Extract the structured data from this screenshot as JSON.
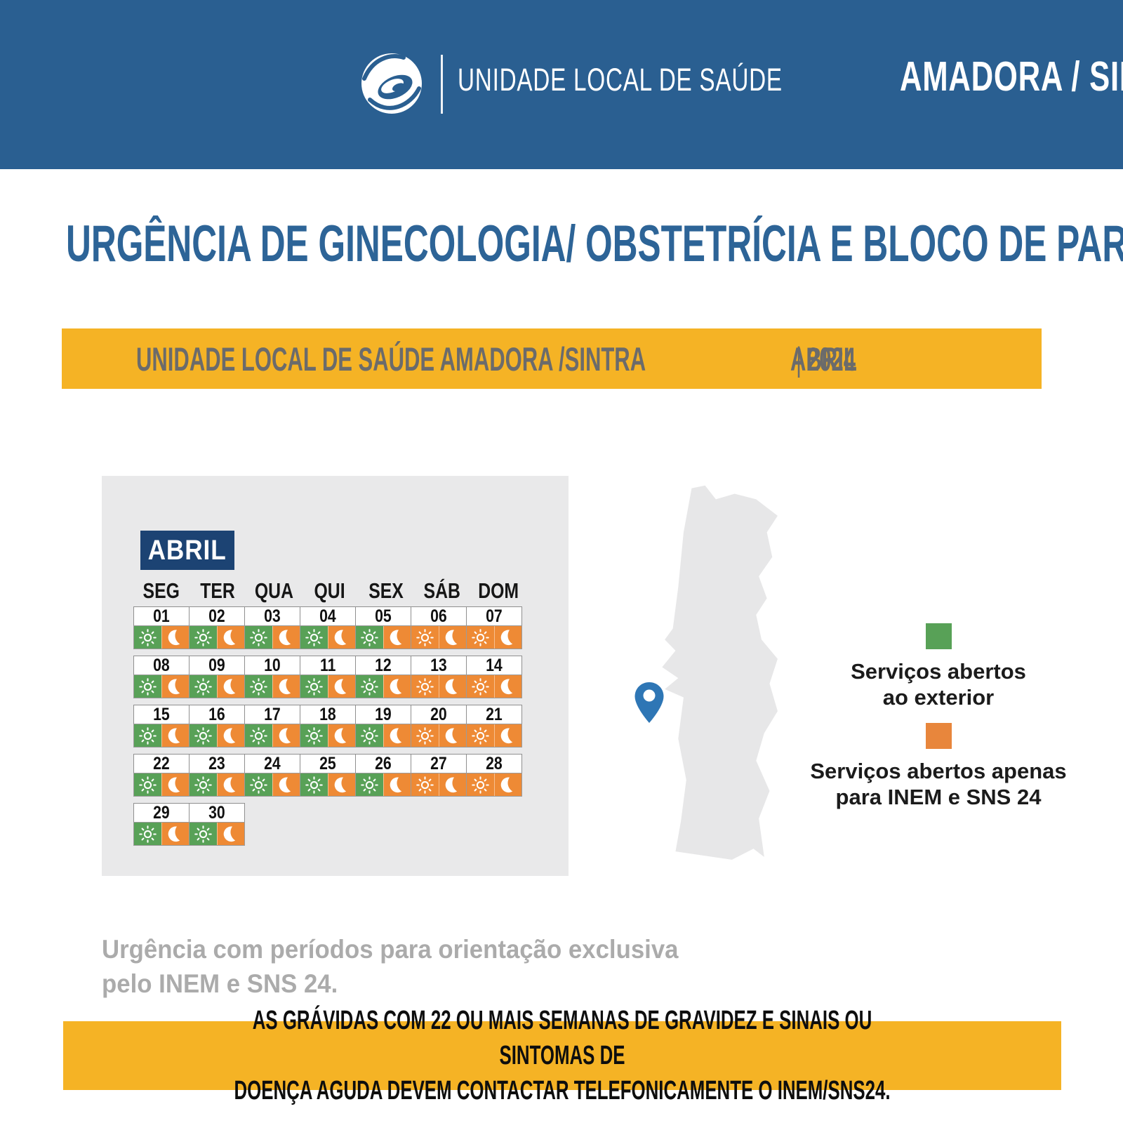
{
  "header": {
    "org_line1": "UNIDADE LOCAL DE SAÚDE",
    "org_line2": "AMADORA / SINTRA"
  },
  "title": "URGÊNCIA DE GINECOLOGIA/ OBSTETRÍCIA E BLOCO DE PARTOS",
  "sub_band": {
    "facility": "UNIDADE LOCAL DE SAÚDE AMADORA /SINTRA",
    "separator": "|",
    "month": "ABRIL",
    "year": "2024"
  },
  "calendar": {
    "month_label": "ABRIL",
    "day_headers": [
      "SEG",
      "TER",
      "QUA",
      "QUI",
      "SEX",
      "SÁB",
      "DOM"
    ],
    "weeks": [
      [
        {
          "date": "01",
          "sun": "green",
          "moon": "orange"
        },
        {
          "date": "02",
          "sun": "green",
          "moon": "orange"
        },
        {
          "date": "03",
          "sun": "green",
          "moon": "orange"
        },
        {
          "date": "04",
          "sun": "green",
          "moon": "orange"
        },
        {
          "date": "05",
          "sun": "green",
          "moon": "orange"
        },
        {
          "date": "06",
          "sun": "orange",
          "moon": "orange"
        },
        {
          "date": "07",
          "sun": "orange",
          "moon": "orange"
        }
      ],
      [
        {
          "date": "08",
          "sun": "green",
          "moon": "orange"
        },
        {
          "date": "09",
          "sun": "green",
          "moon": "orange"
        },
        {
          "date": "10",
          "sun": "green",
          "moon": "orange"
        },
        {
          "date": "11",
          "sun": "green",
          "moon": "orange"
        },
        {
          "date": "12",
          "sun": "green",
          "moon": "orange"
        },
        {
          "date": "13",
          "sun": "orange",
          "moon": "orange"
        },
        {
          "date": "14",
          "sun": "orange",
          "moon": "orange"
        }
      ],
      [
        {
          "date": "15",
          "sun": "green",
          "moon": "orange"
        },
        {
          "date": "16",
          "sun": "green",
          "moon": "orange"
        },
        {
          "date": "17",
          "sun": "green",
          "moon": "orange"
        },
        {
          "date": "18",
          "sun": "green",
          "moon": "orange"
        },
        {
          "date": "19",
          "sun": "green",
          "moon": "orange"
        },
        {
          "date": "20",
          "sun": "orange",
          "moon": "orange"
        },
        {
          "date": "21",
          "sun": "orange",
          "moon": "orange"
        }
      ],
      [
        {
          "date": "22",
          "sun": "green",
          "moon": "orange"
        },
        {
          "date": "23",
          "sun": "green",
          "moon": "orange"
        },
        {
          "date": "24",
          "sun": "green",
          "moon": "orange"
        },
        {
          "date": "25",
          "sun": "green",
          "moon": "orange"
        },
        {
          "date": "26",
          "sun": "green",
          "moon": "orange"
        },
        {
          "date": "27",
          "sun": "orange",
          "moon": "orange"
        },
        {
          "date": "28",
          "sun": "orange",
          "moon": "orange"
        }
      ],
      [
        {
          "date": "29",
          "sun": "green",
          "moon": "orange"
        },
        {
          "date": "30",
          "sun": "green",
          "moon": "orange"
        }
      ]
    ]
  },
  "legend": {
    "items": [
      {
        "swatch": "green",
        "label": "Serviços abertos\nao exterior"
      },
      {
        "swatch": "orange",
        "label": "Serviços abertos apenas\npara INEM e SNS 24"
      }
    ]
  },
  "note": "Urgência com períodos para orientação exclusiva\npelo INEM e SNS 24.",
  "footer": "AS GRÁVIDAS COM 22 OU MAIS SEMANAS DE GRAVIDEZ E SINAIS OU SINTOMAS DE\nDOENÇA AGUDA DEVEM CONTACTAR TELEFONICAMENTE O INEM/SNS24.",
  "colors": {
    "header_blue": "#2A5F91",
    "title_blue": "#2D6497",
    "navy": "#1C4373",
    "yellow": "#F5B325",
    "band_text_gray": "#6B6B6B",
    "panel_gray": "#E9E9EA",
    "green": "#58A157",
    "orange": "#EE8A35",
    "legend_orange": "#E8863C",
    "note_gray": "#ABABAB",
    "pin_blue": "#2E76B5",
    "map_gray": "#E7E7E8"
  }
}
